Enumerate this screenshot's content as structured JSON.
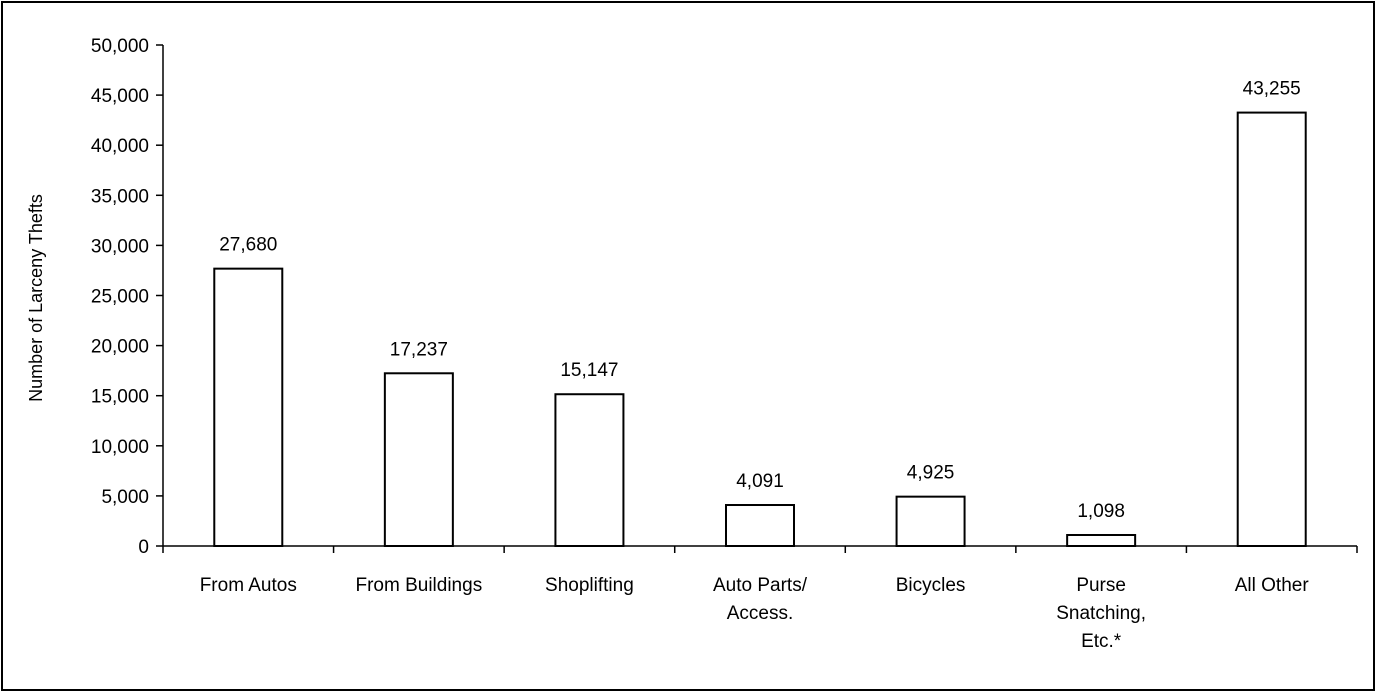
{
  "chart_data": {
    "type": "bar",
    "title": "",
    "xlabel": "",
    "ylabel": "Number of Larceny Thefts",
    "ylim": [
      0,
      50000
    ],
    "ytick_step": 5000,
    "yticks": [
      "0",
      "5,000",
      "10,000",
      "15,000",
      "20,000",
      "25,000",
      "30,000",
      "35,000",
      "40,000",
      "45,000",
      "50,000"
    ],
    "categories": [
      [
        "From Autos"
      ],
      [
        "From Buildings"
      ],
      [
        "Shoplifting"
      ],
      [
        "Auto Parts/",
        "Access."
      ],
      [
        "Bicycles"
      ],
      [
        "Purse",
        "Snatching,",
        "Etc.*"
      ],
      [
        "All Other"
      ]
    ],
    "values": [
      27680,
      17237,
      15147,
      4091,
      4925,
      1098,
      43255
    ],
    "data_labels": [
      "27,680",
      "17,237",
      "15,147",
      "4,091",
      "4,925",
      "1,098",
      "43,255"
    ],
    "grid": false,
    "legend": "none",
    "bar_fill": "#ffffff",
    "bar_stroke": "#000000"
  }
}
